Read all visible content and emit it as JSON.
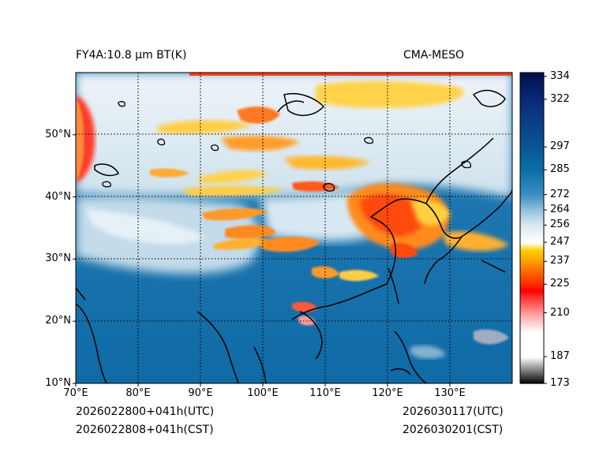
{
  "header": {
    "product": "FY4A:10.8 μm BT(K)",
    "model": "CMA-MESO"
  },
  "footer": {
    "init_utc": "2026022800+041h(UTC)",
    "init_cst": "2026022808+041h(CST)",
    "valid_utc": "2026030117(UTC)",
    "valid_cst": "2026030201(CST)"
  },
  "axes": {
    "lon_ticks": [
      {
        "value": 70,
        "label": "70°E"
      },
      {
        "value": 80,
        "label": "80°E"
      },
      {
        "value": 90,
        "label": "90°E"
      },
      {
        "value": 100,
        "label": "100°E"
      },
      {
        "value": 110,
        "label": "110°E"
      },
      {
        "value": 120,
        "label": "120°E"
      },
      {
        "value": 130,
        "label": "130°E"
      }
    ],
    "lat_ticks": [
      {
        "value": 10,
        "label": "10°N"
      },
      {
        "value": 20,
        "label": "20°N"
      },
      {
        "value": 30,
        "label": "30°N"
      },
      {
        "value": 40,
        "label": "40°N"
      },
      {
        "value": 50,
        "label": "50°N"
      }
    ],
    "lon_range": [
      70,
      140
    ],
    "lat_range": [
      10,
      60
    ]
  },
  "colorbar": {
    "range": [
      173,
      336
    ],
    "ticks": [
      {
        "value": 334,
        "label": "334"
      },
      {
        "value": 322,
        "label": "322"
      },
      {
        "value": 297,
        "label": "297"
      },
      {
        "value": 285,
        "label": "285"
      },
      {
        "value": 272,
        "label": "272"
      },
      {
        "value": 264,
        "label": "264"
      },
      {
        "value": 256,
        "label": "256"
      },
      {
        "value": 247,
        "label": "247"
      },
      {
        "value": 237,
        "label": "237"
      },
      {
        "value": 225,
        "label": "225"
      },
      {
        "value": 210,
        "label": "210"
      },
      {
        "value": 187,
        "label": "187"
      },
      {
        "value": 173,
        "label": "173"
      }
    ],
    "stops": [
      {
        "value": 173,
        "color": "#000000"
      },
      {
        "value": 187,
        "color": "#ffffff"
      },
      {
        "value": 200,
        "color": "#ffffff"
      },
      {
        "value": 210,
        "color": "#ff9a9a"
      },
      {
        "value": 222,
        "color": "#ff0000"
      },
      {
        "value": 225,
        "color": "#ff2a00"
      },
      {
        "value": 232,
        "color": "#ff6a00"
      },
      {
        "value": 237,
        "color": "#ff9c00"
      },
      {
        "value": 243,
        "color": "#ffd000"
      },
      {
        "value": 247,
        "color": "#ffffff"
      },
      {
        "value": 256,
        "color": "#dbe9f3"
      },
      {
        "value": 264,
        "color": "#95c2dd"
      },
      {
        "value": 272,
        "color": "#3b8fc0"
      },
      {
        "value": 285,
        "color": "#0a6fa6"
      },
      {
        "value": 297,
        "color": "#0a5596"
      },
      {
        "value": 322,
        "color": "#0a2a78"
      },
      {
        "value": 336,
        "color": "#00104a"
      }
    ]
  }
}
